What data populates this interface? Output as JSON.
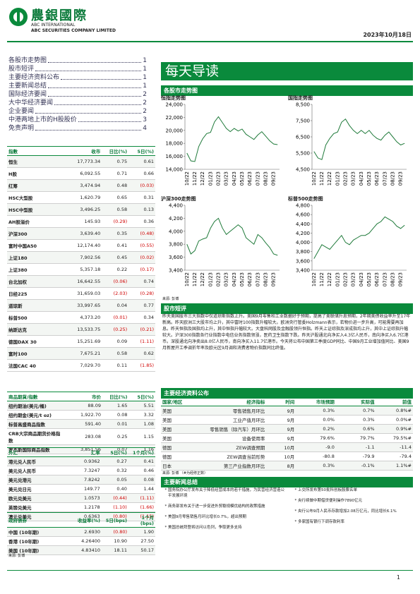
{
  "header": {
    "company_cn": "農銀國際",
    "company_en1": "ABC INTERNATIONAL",
    "company_en2": "ABC SECURITIES COMPANY LIMITED",
    "date": "2023年10月18日"
  },
  "toc": [
    {
      "label": "各股市走势图",
      "page": "1"
    },
    {
      "label": "股市短评",
      "page": "1"
    },
    {
      "label": "主要经济资料公布",
      "page": "1"
    },
    {
      "label": "主要新闻总结",
      "page": "1"
    },
    {
      "label": "国际经济要闻",
      "page": "2"
    },
    {
      "label": "大中华经济要闻",
      "page": "2"
    },
    {
      "label": "企业要闻",
      "page": "2"
    },
    {
      "label": "中港两地上市的H股股价",
      "page": "3"
    },
    {
      "label": "免责声明",
      "page": "4"
    }
  ],
  "banner": "每天导读",
  "charts_section": {
    "title": "各股市走势图",
    "source": "来源: 彭博",
    "charts": [
      {
        "type": "line",
        "title": "恒指走势图",
        "color": "#1f7a3a",
        "categories": [
          "10/22",
          null,
          "11/22",
          null,
          "12/22",
          null,
          "01/23",
          null,
          "02/23",
          null,
          "03/23",
          null,
          "04/23",
          null,
          "05/23",
          null,
          "06/23",
          null,
          "07/23",
          null,
          "08/23",
          null,
          "09/23",
          null
        ],
        "values": [
          16500,
          15300,
          15200,
          17500,
          18700,
          19500,
          19700,
          21300,
          22100,
          21200,
          20300,
          19800,
          20300,
          19900,
          20200,
          19400,
          19000,
          18600,
          19300,
          19800,
          19100,
          18400,
          17900,
          17800
        ],
        "ylim": [
          14000,
          24000
        ],
        "yticks": [
          {
            "value": 14000,
            "label": "14,000"
          },
          {
            "value": 16000,
            "label": "16,000"
          },
          {
            "value": 18000,
            "label": "18,000"
          },
          {
            "value": 20000,
            "label": "20,000"
          },
          {
            "value": 22000,
            "label": "22,000"
          },
          {
            "value": 24000,
            "label": "24,000"
          }
        ]
      },
      {
        "type": "line",
        "title": "国指走势图",
        "color": "#1f7a3a",
        "categories": [
          "10/22",
          null,
          "11/22",
          null,
          "12/22",
          null,
          "01/23",
          null,
          "02/23",
          null,
          "03/23",
          null,
          "04/23",
          null,
          "05/23",
          null,
          "06/23",
          null,
          "07/23",
          null,
          "08/23",
          null,
          "09/23",
          null
        ],
        "values": [
          5600,
          5200,
          5100,
          6000,
          6400,
          6700,
          6800,
          7400,
          7600,
          7200,
          6900,
          6700,
          6900,
          6700,
          6900,
          6600,
          6400,
          6300,
          6600,
          6800,
          6500,
          6200,
          6000,
          6100
        ],
        "ylim": [
          4500,
          8500
        ],
        "yticks": [
          {
            "value": 4500,
            "label": "4,500"
          },
          {
            "value": 5500,
            "label": "5,500"
          },
          {
            "value": 6500,
            "label": "6,500"
          },
          {
            "value": 7500,
            "label": "7,500"
          },
          {
            "value": 8500,
            "label": "8,500"
          }
        ]
      },
      {
        "type": "line",
        "title": "沪深300走势图",
        "color": "#1f7a3a",
        "categories": [
          "10/22",
          null,
          "11/22",
          null,
          "12/22",
          null,
          "01/23",
          null,
          "02/23",
          null,
          "03/23",
          null,
          "04/23",
          null,
          "05/23",
          null,
          "06/23",
          null,
          "07/23",
          null,
          "08/23",
          null,
          "09/23",
          null
        ],
        "values": [
          3800,
          3650,
          3700,
          3850,
          3880,
          3900,
          4050,
          4150,
          4200,
          4050,
          3950,
          4000,
          4050,
          4100,
          4050,
          3900,
          3850,
          3800,
          3950,
          3900,
          3820,
          3750,
          3650,
          3630
        ],
        "ylim": [
          3400,
          4400
        ],
        "yticks": [
          {
            "value": 3400,
            "label": "3,400"
          },
          {
            "value": 3600,
            "label": "3,600"
          },
          {
            "value": 3800,
            "label": "3,800"
          },
          {
            "value": 4000,
            "label": "4,000"
          },
          {
            "value": 4200,
            "label": "4,200"
          },
          {
            "value": 4400,
            "label": "4,400"
          }
        ]
      },
      {
        "type": "line",
        "title": "标普500走势图",
        "color": "#1f7a3a",
        "categories": [
          "10/22",
          null,
          "11/22",
          null,
          "12/22",
          null,
          "01/23",
          null,
          "02/23",
          null,
          "03/23",
          null,
          "04/23",
          null,
          "05/23",
          null,
          "06/23",
          null,
          "07/23",
          null,
          "08/23",
          null,
          "09/23",
          null
        ],
        "values": [
          3650,
          3800,
          3950,
          3900,
          3850,
          3950,
          4050,
          4150,
          4000,
          3950,
          4050,
          4100,
          4150,
          4150,
          4200,
          4300,
          4400,
          4450,
          4550,
          4500,
          4450,
          4350,
          4300,
          4370
        ],
        "ylim": [
          3400,
          4800
        ],
        "yticks": [
          {
            "value": 3400,
            "label": "3,400"
          },
          {
            "value": 3600,
            "label": "3,600"
          },
          {
            "value": 3800,
            "label": "3,800"
          },
          {
            "value": 4000,
            "label": "4,000"
          },
          {
            "value": 4200,
            "label": "4,200"
          },
          {
            "value": 4400,
            "label": "4,400"
          },
          {
            "value": 4600,
            "label": "4,600"
          },
          {
            "value": 4800,
            "label": "4,800"
          }
        ]
      }
    ]
  },
  "index_table": {
    "columns": [
      "指數",
      "收市",
      "日比(%)",
      "5日(%)"
    ],
    "rows": [
      [
        "恒生",
        "17,773.34",
        "0.75",
        "0.61"
      ],
      [
        "H股",
        "6,092.55",
        "0.71",
        "0.66"
      ],
      [
        "红筹",
        "3,474.94",
        "0.48",
        "(0.03)"
      ],
      [
        "HSC大型股",
        "1,620.79",
        "0.65",
        "0.31"
      ],
      [
        "HSC中型股",
        "3,496.25",
        "0.58",
        "0.13"
      ],
      [
        "AH股溢价",
        "145.93",
        "(0.29)",
        "0.36"
      ],
      [
        "沪深300",
        "3,639.40",
        "0.35",
        "(0.48)"
      ],
      [
        "富时中国A50",
        "12,174.40",
        "0.41",
        "(0.55)"
      ],
      [
        "上证180",
        "7,902.56",
        "0.45",
        "(0.02)"
      ],
      [
        "上证380",
        "5,357.18",
        "0.22",
        "(0.17)"
      ],
      [
        "台北加权",
        "16,642.55",
        "(0.06)",
        "0.74"
      ],
      [
        "日经225",
        "31,659.03",
        "(2.03)",
        "(0.28)"
      ],
      [
        "道琼斯",
        "33,997.65",
        "0.04",
        "0.77"
      ],
      [
        "标普500",
        "4,373.20",
        "(0.01)",
        "0.34"
      ],
      [
        "纳斯达克",
        "13,533.75",
        "(0.25)",
        "(0.21)"
      ],
      [
        "德国DAX 30",
        "15,251.69",
        "0.09",
        "(1.11)"
      ],
      [
        "富时100",
        "7,675.21",
        "0.58",
        "0.62"
      ],
      [
        "法国CAC 40",
        "7,029.70",
        "0.11",
        "(1.85)"
      ]
    ]
  },
  "commodity_table": {
    "columns": [
      "商品期貨/指數",
      "市价",
      "日比(%)",
      "5日(%)"
    ],
    "rows": [
      [
        "纽约期油(美元/桶)",
        "88.09",
        "1.65",
        "5.51"
      ],
      [
        "纽约期金(美元/t oz)",
        "1,922.70",
        "0.08",
        "3.32"
      ],
      [
        "标普高盛商品指数",
        "591.40",
        "0.01",
        "1.08"
      ],
      [
        "CRB大宗商品期货价格指数",
        "283.08",
        "0.25",
        "1.15"
      ],
      [
        "罗杰斯国际商品指数",
        "3,851.56",
        "0.07",
        "1.16"
      ]
    ]
  },
  "fx_table": {
    "columns": [
      "外汇",
      "汇率",
      "5日(%)",
      "1个月(%)"
    ],
    "rows": [
      [
        "港元兑人民币",
        "0.9362",
        "0.27",
        "0.41"
      ],
      [
        "美元兑人民币",
        "7.3247",
        "0.32",
        "0.46"
      ],
      [
        "美元兑港元",
        "7.8242",
        "0.05",
        "0.08"
      ],
      [
        "美元兑日元",
        "149.77",
        "0.40",
        "1.44"
      ],
      [
        "欧元兑美元",
        "1.0573",
        "(0.44)",
        "(1.11)"
      ],
      [
        "英镑兑美元",
        "1.2178",
        "(1.10)",
        "(1.66)"
      ],
      [
        "澳元兑美元",
        "0.6363",
        "(0.80)",
        "(1.15)"
      ]
    ]
  },
  "bond_table": {
    "columns": [
      "政府债券",
      "收益率(%)",
      "5日(bps)",
      "1个月(bps)"
    ],
    "rows": [
      [
        "中国 (10年期)",
        "2.6930",
        "(0.80)",
        "1.90"
      ],
      [
        "香港 (10年期)",
        "4.26400",
        "10.90",
        "27.50"
      ],
      [
        "美国 (10年期)",
        "4.83410",
        "18.11",
        "50.17"
      ]
    ]
  },
  "bond_source": "来源: 彭博",
  "commentary": {
    "title": "股市短评",
    "text": "昨天美国股市三大指数中仅道琼斯指数上升。美国9月零售和工业数据好于预期，提高了美联储升息预期，2年期美债收益率升至17年新高。昨天欧洲三大股市均上升，其中富时100指数升幅较大。欧洲央行管委Holzmann表示，若物价进一步升高，可能需要再加息。昨天恒指及国指均上升，其中恒指升幅较大。大盘科网股及金融股领升恒指。昨天上证综指及深成指均上升，其中上证综指升幅较大。沪深300指数各行业指数中电信业务指数领涨，医药卫生指数下跌。昨天沪股通北向净买入4.3亿人民币，南向净买入6.7亿港币。深股通北向净卖出8.0亿人民币，南向净买入11.7亿港币。今天将公布中国第三季度GDP同比、中国9月工业增加值同比、美国9月新屋开工季调折年率及欧元区9月调和消费者物价指数同比终值。"
  },
  "econ": {
    "title": "主要经济资料公布",
    "columns": [
      "国家/地区",
      "经济指标",
      "时间",
      "市场预期",
      "实际值",
      "前值"
    ],
    "rows": [
      [
        "美国",
        "零售销售月环比",
        "9月",
        "0.3%",
        "0.7%",
        "0.8%#"
      ],
      [
        "美国",
        "工业产值月环比",
        "9月",
        "0.0%",
        "0.3%",
        "0.0%#"
      ],
      [
        "美国",
        "零售销售（除汽车）月环比",
        "9月",
        "0.2%",
        "0.6%",
        "0.9%#"
      ],
      [
        "美国",
        "设备使用率",
        "9月",
        "79.6%",
        "79.7%",
        "79.5%#"
      ],
      [
        "德国",
        "ZEW调查预期",
        "10月",
        "-9.0",
        "-1.1",
        "-11.4"
      ],
      [
        "德国",
        "ZEW调查当前形势",
        "10月",
        "-80.8",
        "-79.9",
        "-79.4"
      ],
      [
        "日本",
        "第三产业指数月环比",
        "8月",
        "0.3%",
        "-0.1%",
        "1.1%#"
      ]
    ],
    "note": "来源: 彭博 （#为经修正数）"
  },
  "news": {
    "title": "主要新闻总结",
    "left": [
      "国务院办公厅发布关于降低经营成本的若干措施，为民营经济营造公平发展环境",
      "商务部发布关于进一步促进外贸稳规模优结构的政策措施",
      "美国9月零售销售月环比增长0.7%，超出预期",
      "美国总统拜登将访问以色列，争取更多支持"
    ],
    "right": [
      "上交所发布第50批科创板股票名单",
      "央行续做中期借贷便利操作7890亿元",
      "央行公布9月人民币存款增加2.08万亿元，同比增长6.1%",
      "多家国有银行下调存款利率"
    ]
  },
  "page_number": "1"
}
